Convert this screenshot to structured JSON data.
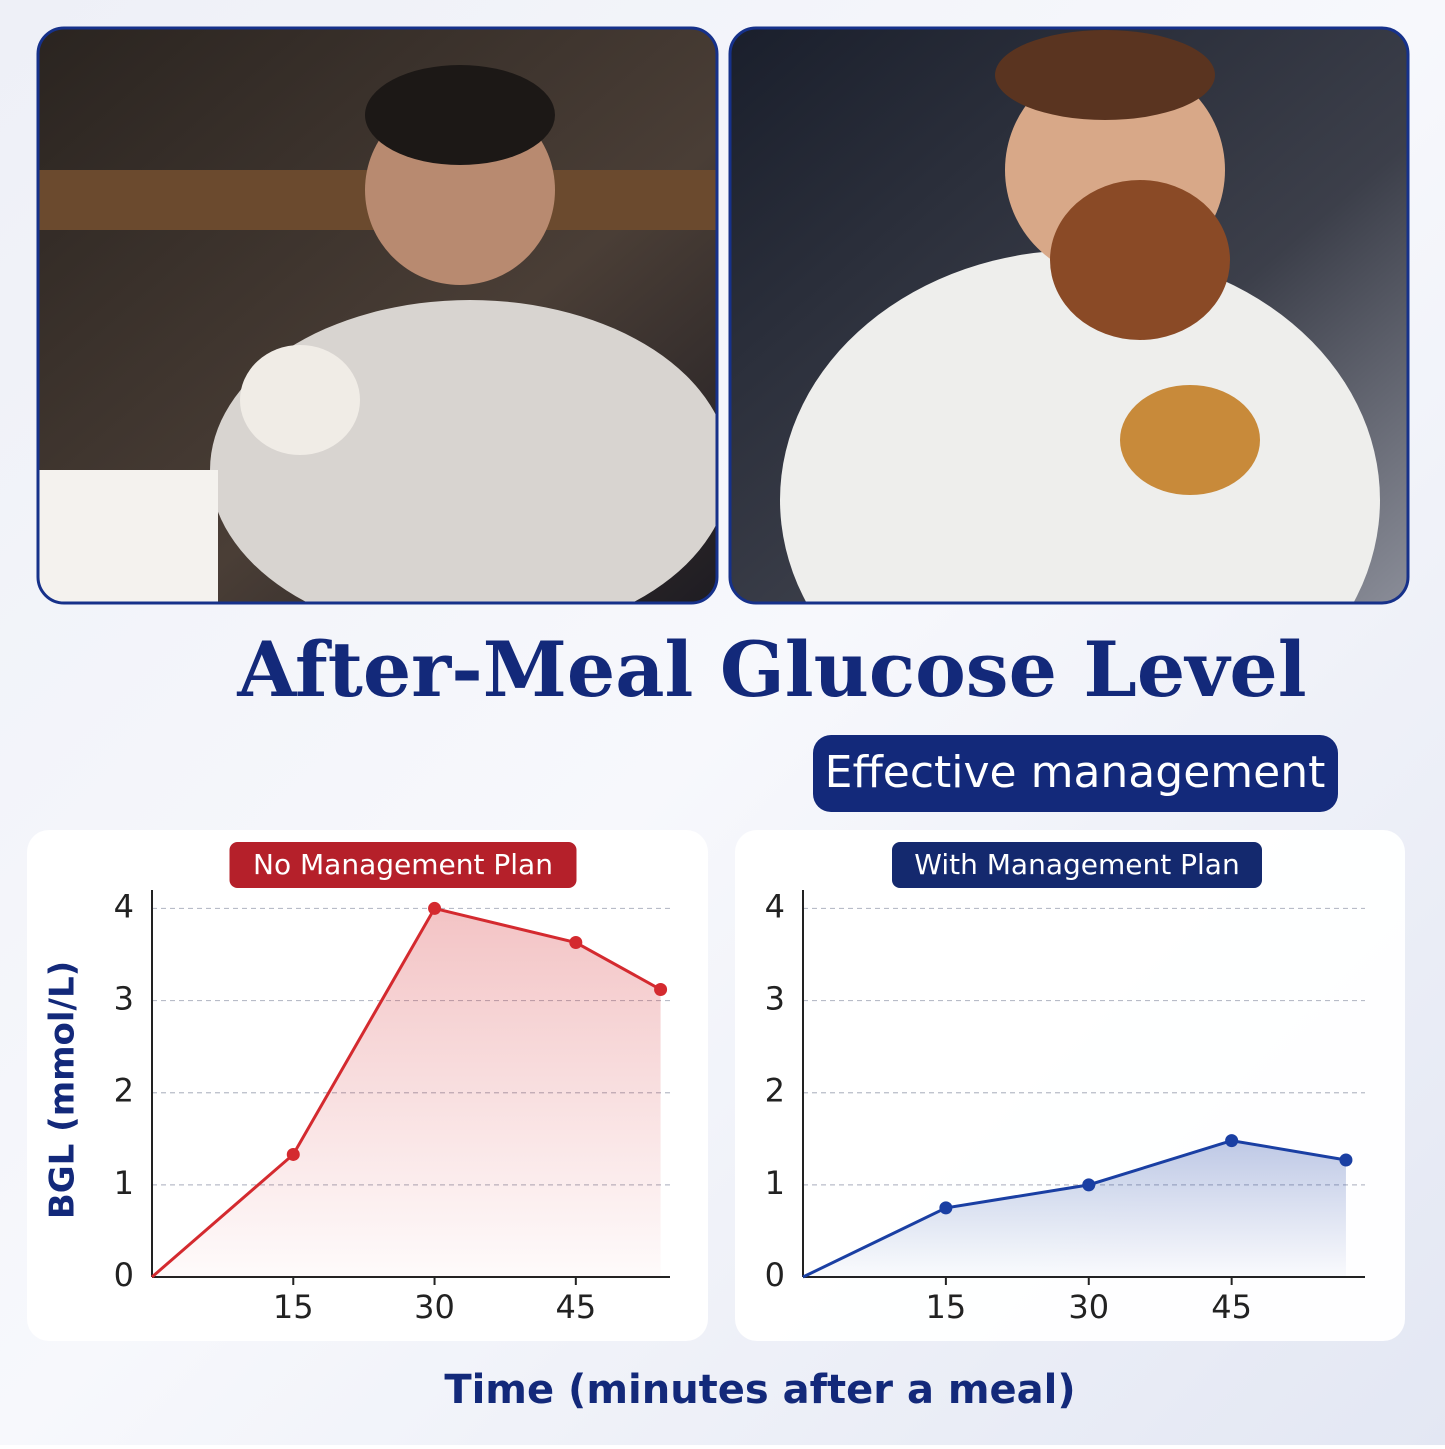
{
  "title": "After-Meal Glucose Level",
  "subtitle": "Effective management",
  "y_label": "BGL (mmol/L)",
  "x_label": "Time  (minutes after a meal)",
  "chart_data": [
    {
      "type": "line",
      "title": "No Management Plan",
      "title_color": "#b5202a",
      "x": [
        0,
        15,
        30,
        45,
        54
      ],
      "values": [
        0,
        1.33,
        4.0,
        3.63,
        3.12
      ],
      "color": "#d42a2f",
      "xlim": [
        0,
        55
      ],
      "ylim": [
        0,
        4.2
      ],
      "xticks": [
        15,
        30,
        45
      ],
      "yticks": [
        0,
        1,
        2,
        3,
        4
      ],
      "grid": true
    },
    {
      "type": "line",
      "title": "With Management Plan",
      "title_color": "#14296e",
      "x": [
        0,
        15,
        30,
        45,
        57
      ],
      "values": [
        0,
        0.75,
        1.0,
        1.48,
        1.27
      ],
      "color": "#1a3fa3",
      "xlim": [
        0,
        59
      ],
      "ylim": [
        0,
        4.2
      ],
      "xticks": [
        15,
        30,
        45
      ],
      "yticks": [
        0,
        1,
        2,
        3,
        4
      ],
      "grid": true
    }
  ]
}
